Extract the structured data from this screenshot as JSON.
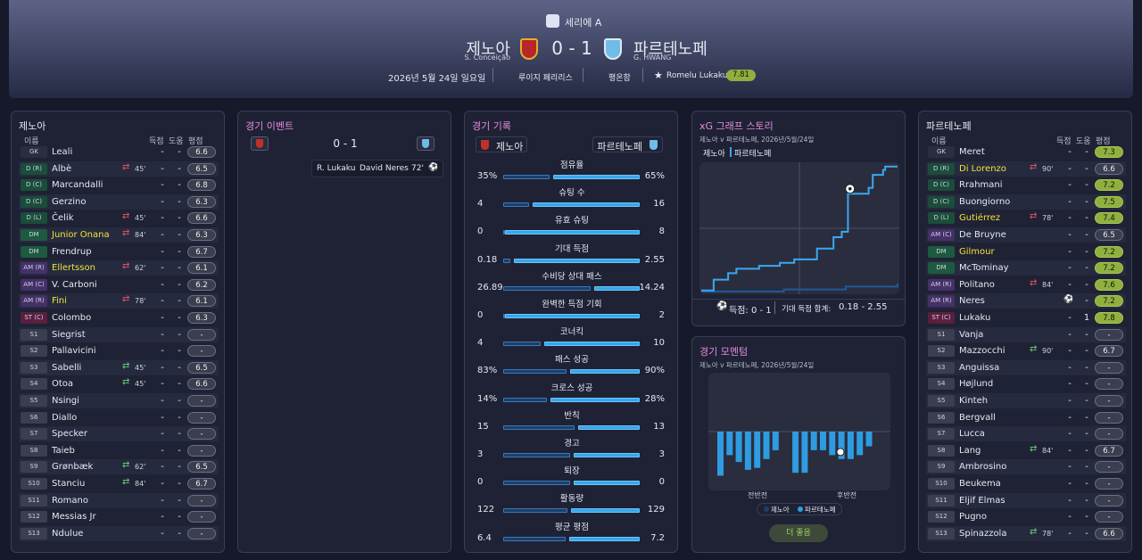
{
  "header": {
    "competition": "세리에 A",
    "home": {
      "name": "제노아",
      "manager": "S. Conceição"
    },
    "score": "0 - 1",
    "away": {
      "name": "파르테노페",
      "manager": "G. HWANG"
    },
    "date": "2026년 5월 24일 일요일",
    "referee": "루이지 페리리스",
    "weather": "평온함",
    "potm": {
      "name": "Romelu Lukaku",
      "rating": "7.81"
    }
  },
  "home_panel": {
    "title": "제노아",
    "columns": [
      "이름",
      "득점",
      "도움",
      "평점"
    ],
    "players": [
      {
        "pos": "GK",
        "name": "Leali",
        "goals": "-",
        "assists": "-",
        "rating": "6.6"
      },
      {
        "pos": "D (R)",
        "name": "Albè",
        "sub": "45'",
        "sub_type": "off",
        "goals": "-",
        "assists": "-",
        "rating": "6.5"
      },
      {
        "pos": "D (C)",
        "name": "Marcandalli",
        "goals": "-",
        "assists": "-",
        "rating": "6.8"
      },
      {
        "pos": "D (C)",
        "name": "Gerzino",
        "goals": "-",
        "assists": "-",
        "rating": "6.3"
      },
      {
        "pos": "D (L)",
        "name": "Čelik",
        "sub": "45'",
        "sub_type": "off",
        "goals": "-",
        "assists": "-",
        "rating": "6.6"
      },
      {
        "pos": "DM",
        "name": "Junior Onana",
        "highlight": true,
        "sub": "84'",
        "sub_type": "off",
        "goals": "-",
        "assists": "-",
        "rating": "6.3"
      },
      {
        "pos": "DM",
        "name": "Frendrup",
        "goals": "-",
        "assists": "-",
        "rating": "6.7"
      },
      {
        "pos": "AM (R)",
        "name": "Ellertsson",
        "highlight": true,
        "sub": "62'",
        "sub_type": "off",
        "goals": "-",
        "assists": "-",
        "rating": "6.1"
      },
      {
        "pos": "AM (C)",
        "name": "V. Carboni",
        "goals": "-",
        "assists": "-",
        "rating": "6.2"
      },
      {
        "pos": "AM (R)",
        "name": "Fini",
        "highlight": true,
        "sub": "78'",
        "sub_type": "off",
        "goals": "-",
        "assists": "-",
        "rating": "6.1"
      },
      {
        "pos": "ST (C)",
        "name": "Colombo",
        "goals": "-",
        "assists": "-",
        "rating": "6.3"
      },
      {
        "pos": "S1",
        "name": "Siegrist",
        "goals": "-",
        "assists": "-",
        "rating": "-"
      },
      {
        "pos": "S2",
        "name": "Pallavicini",
        "goals": "-",
        "assists": "-",
        "rating": "-"
      },
      {
        "pos": "S3",
        "name": "Sabelli",
        "sub": "45'",
        "sub_type": "on",
        "goals": "-",
        "assists": "-",
        "rating": "6.5"
      },
      {
        "pos": "S4",
        "name": "Otoa",
        "sub": "45'",
        "sub_type": "on",
        "goals": "-",
        "assists": "-",
        "rating": "6.6"
      },
      {
        "pos": "S5",
        "name": "Nsingi",
        "goals": "-",
        "assists": "-",
        "rating": "-"
      },
      {
        "pos": "S6",
        "name": "Diallo",
        "goals": "-",
        "assists": "-",
        "rating": "-"
      },
      {
        "pos": "S7",
        "name": "Specker",
        "goals": "-",
        "assists": "-",
        "rating": "-"
      },
      {
        "pos": "S8",
        "name": "Taieb",
        "goals": "-",
        "assists": "-",
        "rating": "-"
      },
      {
        "pos": "S9",
        "name": "Grønbæk",
        "sub": "62'",
        "sub_type": "on",
        "goals": "-",
        "assists": "-",
        "rating": "6.5"
      },
      {
        "pos": "S10",
        "name": "Stanciu",
        "sub": "84'",
        "sub_type": "on",
        "goals": "-",
        "assists": "-",
        "rating": "6.7"
      },
      {
        "pos": "S11",
        "name": "Romano",
        "goals": "-",
        "assists": "-",
        "rating": "-"
      },
      {
        "pos": "S12",
        "name": "Messias Jr",
        "goals": "-",
        "assists": "-",
        "rating": "-"
      },
      {
        "pos": "S13",
        "name": "Ndulue",
        "goals": "-",
        "assists": "-",
        "rating": "-"
      }
    ]
  },
  "away_panel": {
    "title": "파르테노페",
    "columns": [
      "이름",
      "득점",
      "도움",
      "평점"
    ],
    "players": [
      {
        "pos": "GK",
        "name": "Meret",
        "goals": "-",
        "assists": "-",
        "rating": "7.3"
      },
      {
        "pos": "D (R)",
        "name": "Di Lorenzo",
        "highlight": true,
        "sub": "90'",
        "sub_type": "off",
        "goals": "-",
        "assists": "-",
        "rating": "6.6"
      },
      {
        "pos": "D (C)",
        "name": "Rrahmani",
        "goals": "-",
        "assists": "-",
        "rating": "7.2"
      },
      {
        "pos": "D (C)",
        "name": "Buongiorno",
        "goals": "-",
        "assists": "-",
        "rating": "7.5"
      },
      {
        "pos": "D (L)",
        "name": "Gutiérrez",
        "highlight": true,
        "sub": "78'",
        "sub_type": "off",
        "goals": "-",
        "assists": "-",
        "rating": "7.4"
      },
      {
        "pos": "AM (C)",
        "name": "De Bruyne",
        "goals": "-",
        "assists": "-",
        "rating": "6.5"
      },
      {
        "pos": "DM",
        "name": "Gilmour",
        "highlight": true,
        "goals": "-",
        "assists": "-",
        "rating": "7.2"
      },
      {
        "pos": "DM",
        "name": "McTominay",
        "goals": "-",
        "assists": "-",
        "rating": "7.2"
      },
      {
        "pos": "AM (R)",
        "name": "Politano",
        "sub": "84'",
        "sub_type": "off",
        "goals": "-",
        "assists": "-",
        "rating": "7.6"
      },
      {
        "pos": "AM (R)",
        "name": "Neres",
        "assist_icon": true,
        "assists": "-",
        "rating": "7.2"
      },
      {
        "pos": "ST (C)",
        "name": "Lukaku",
        "goals": "-",
        "assists": "1",
        "rating": "7.8"
      },
      {
        "pos": "S1",
        "name": "Vanja",
        "goals": "-",
        "assists": "-",
        "rating": "-"
      },
      {
        "pos": "S2",
        "name": "Mazzocchi",
        "sub": "90'",
        "sub_type": "on",
        "goals": "-",
        "assists": "-",
        "rating": "6.7"
      },
      {
        "pos": "S3",
        "name": "Anguissa",
        "goals": "-",
        "assists": "-",
        "rating": "-"
      },
      {
        "pos": "S4",
        "name": "Højlund",
        "goals": "-",
        "assists": "-",
        "rating": "-"
      },
      {
        "pos": "S5",
        "name": "Kinteh",
        "goals": "-",
        "assists": "-",
        "rating": "-"
      },
      {
        "pos": "S6",
        "name": "Bergvall",
        "goals": "-",
        "assists": "-",
        "rating": "-"
      },
      {
        "pos": "S7",
        "name": "Lucca",
        "goals": "-",
        "assists": "-",
        "rating": "-"
      },
      {
        "pos": "S8",
        "name": "Lang",
        "sub": "84'",
        "sub_type": "on",
        "goals": "-",
        "assists": "-",
        "rating": "6.7"
      },
      {
        "pos": "S9",
        "name": "Ambrosino",
        "goals": "-",
        "assists": "-",
        "rating": "-"
      },
      {
        "pos": "S10",
        "name": "Beukema",
        "goals": "-",
        "assists": "-",
        "rating": "-"
      },
      {
        "pos": "S11",
        "name": "Eljif Elmas",
        "goals": "-",
        "assists": "-",
        "rating": "-"
      },
      {
        "pos": "S12",
        "name": "Pugno",
        "goals": "-",
        "assists": "-",
        "rating": "-"
      },
      {
        "pos": "S13",
        "name": "Spinazzola",
        "sub": "78'",
        "sub_type": "on",
        "goals": "-",
        "assists": "-",
        "rating": "6.6"
      }
    ]
  },
  "events": {
    "title": "경기 이벤트",
    "score": "0 - 1",
    "items": [
      {
        "scorer": "R. Lukaku",
        "assist": "David Neres",
        "minute": "72'"
      }
    ]
  },
  "stats": {
    "title": "경기 기록",
    "home": "제노아",
    "away": "파르테노페",
    "rows": [
      {
        "label": "점유율",
        "home": "35%",
        "away": "65%"
      },
      {
        "label": "슈팅 수",
        "home": "4",
        "away": "16"
      },
      {
        "label": "유효 슈팅",
        "home": "0",
        "away": "8"
      },
      {
        "label": "기대 득점",
        "home": "0.18",
        "away": "2.55"
      },
      {
        "label": "수비당 상대 패스",
        "home": "26.89",
        "away": "14.24"
      },
      {
        "label": "완벽한 득점 기회",
        "home": "0",
        "away": "2"
      },
      {
        "label": "코너킥",
        "home": "4",
        "away": "10"
      },
      {
        "label": "패스 성공",
        "home": "83%",
        "away": "90%"
      },
      {
        "label": "크로스 성공",
        "home": "14%",
        "away": "28%"
      },
      {
        "label": "반칙",
        "home": "15",
        "away": "13"
      },
      {
        "label": "경고",
        "home": "3",
        "away": "3"
      },
      {
        "label": "퇴장",
        "home": "0",
        "away": "0"
      },
      {
        "label": "활동량",
        "home": "122",
        "away": "129"
      },
      {
        "label": "평균 평점",
        "home": "6.4",
        "away": "7.2"
      }
    ]
  },
  "xg": {
    "title": "xG 그래프 스토리",
    "subtitle": "제노아 v 파르테노페, 2026년/5월/24일",
    "legend": [
      "제노아",
      "파르테노페"
    ],
    "score_label": "득점: 0 - 1",
    "total_label": "기대 득점 합계:",
    "total": "0.18 - 2.55",
    "chart": {
      "type": "line",
      "xlim": [
        0,
        95
      ],
      "ylim": [
        0,
        2.6
      ],
      "goal": {
        "x": 72,
        "y": 2.1
      },
      "series": [
        {
          "color": "#1f5a9a",
          "x": [
            0,
            40,
            70,
            95
          ],
          "values": [
            0.02,
            0.06,
            0.12,
            0.18
          ]
        },
        {
          "color": "#3aa8f0",
          "x": [
            0,
            6,
            13,
            17,
            28,
            38,
            45,
            56,
            64,
            68,
            71,
            81,
            83,
            88,
            89
          ],
          "values": [
            0.04,
            0.26,
            0.39,
            0.48,
            0.54,
            0.6,
            0.67,
            0.89,
            1.12,
            1.23,
            2.0,
            2.12,
            2.38,
            2.48,
            2.55
          ]
        }
      ]
    }
  },
  "momentum": {
    "title": "경기 모멘텀",
    "subtitle": "제노아 v 파르테노페, 2026년/5월/24일",
    "halves": [
      "전반전",
      "후반전"
    ],
    "legend": [
      "제노아",
      "파르테노페"
    ],
    "button": "더 좋음",
    "chart": {
      "type": "bar",
      "ylim": [
        -60,
        60
      ],
      "color": "#2f9be0",
      "values": [
        -45,
        -24,
        -31,
        -39,
        -37,
        -28,
        -19,
        -42,
        -42,
        -19,
        -19,
        -24,
        -28,
        -28,
        -24,
        -15
      ],
      "half_break": 7
    }
  }
}
